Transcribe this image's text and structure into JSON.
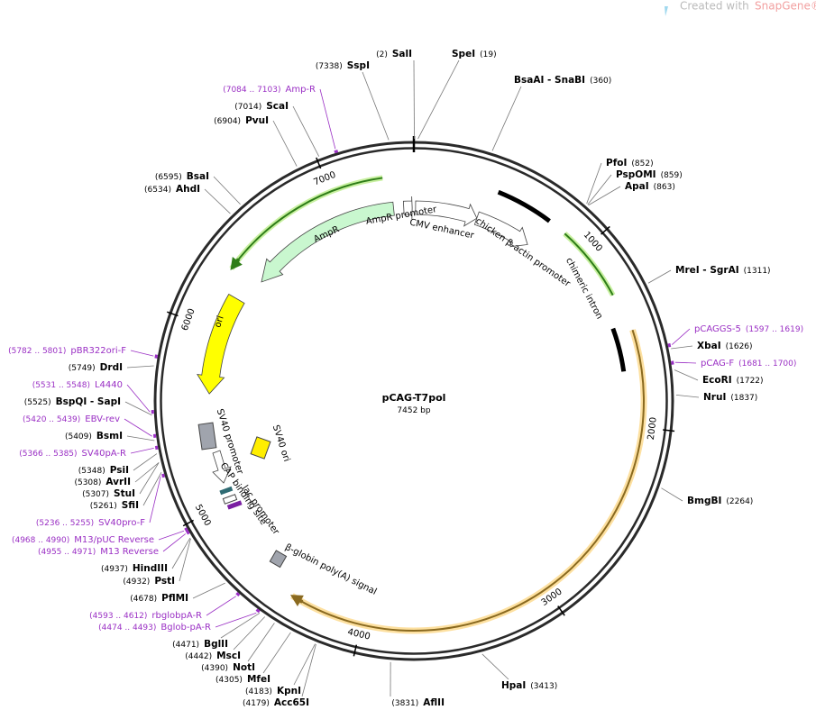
{
  "header": {
    "prefix": "Created with",
    "brand": "SnapGene®"
  },
  "map": {
    "name": "pCAG-T7pol",
    "length": 7452,
    "unit": "bp",
    "ticks": [
      1000,
      2000,
      3000,
      4000,
      5000,
      6000,
      7000
    ]
  },
  "sites": [
    {
      "name": "SalI",
      "position": "(2)"
    },
    {
      "name": "SspI",
      "position": "(7338)"
    },
    {
      "name": "SpeI",
      "position": "(19)"
    },
    {
      "name": "BsaAI - SnaBI",
      "position": "(360)"
    },
    {
      "name": "PfoI",
      "position": "(852)"
    },
    {
      "name": "PspOMI",
      "position": "(859)"
    },
    {
      "name": "ApaI",
      "position": "(863)"
    },
    {
      "name": "MreI - SgrAI",
      "position": "(1311)"
    },
    {
      "name": "XbaI",
      "position": "(1626)"
    },
    {
      "name": "EcoRI",
      "position": "(1722)"
    },
    {
      "name": "NruI",
      "position": "(1837)"
    },
    {
      "name": "BmgBI",
      "position": "(2264)"
    },
    {
      "name": "HpaI",
      "position": "(3413)"
    },
    {
      "name": "AflII",
      "position": "(3831)"
    },
    {
      "name": "ScaI",
      "position": "(7014)"
    },
    {
      "name": "PvuI",
      "position": "(6904)"
    },
    {
      "name": "BsaI",
      "position": "(6595)"
    },
    {
      "name": "AhdI",
      "position": "(6534)"
    },
    {
      "name": "DrdI",
      "position": "(5749)"
    },
    {
      "name": "BspQI - SapI",
      "position": "(5525)"
    },
    {
      "name": "BsmI",
      "position": "(5409)"
    },
    {
      "name": "PsiI",
      "position": "(5348)"
    },
    {
      "name": "AvrII",
      "position": "(5308)"
    },
    {
      "name": "StuI",
      "position": "(5307)"
    },
    {
      "name": "SfiI",
      "position": "(5261)"
    },
    {
      "name": "HindIII",
      "position": "(4937)"
    },
    {
      "name": "PstI",
      "position": "(4932)"
    },
    {
      "name": "PflMI",
      "position": "(4678)"
    },
    {
      "name": "BglII",
      "position": "(4471)"
    },
    {
      "name": "MscI",
      "position": "(4442)"
    },
    {
      "name": "NotI",
      "position": "(4390)"
    },
    {
      "name": "MfeI",
      "position": "(4305)"
    },
    {
      "name": "KpnI",
      "position": "(4183)"
    },
    {
      "name": "Acc65I",
      "position": "(4179)"
    }
  ],
  "primers": [
    {
      "name": "Amp-R",
      "range": "(7084 .. 7103)"
    },
    {
      "name": "pCAGGS-5",
      "range": "(1597 .. 1619)"
    },
    {
      "name": "pCAG-F",
      "range": "(1681 .. 1700)"
    },
    {
      "name": "pBR322ori-F",
      "range": "(5782 .. 5801)"
    },
    {
      "name": "L4440",
      "range": "(5531 .. 5548)"
    },
    {
      "name": "EBV-rev",
      "range": "(5420 .. 5439)"
    },
    {
      "name": "SV40pA-R",
      "range": "(5366 .. 5385)"
    },
    {
      "name": "SV40pro-F",
      "range": "(5236 .. 5255)"
    },
    {
      "name": "M13/pUC Reverse",
      "range": "(4968 .. 4990)"
    },
    {
      "name": "M13 Reverse",
      "range": "(4955 .. 4971)"
    },
    {
      "name": "rbglobpA-R",
      "range": "(4593 .. 4612)"
    },
    {
      "name": "Bglob-pA-R",
      "range": "(4474 .. 4493)"
    }
  ],
  "features": [
    "AmpR promoter",
    "AmpR",
    "ori",
    "CMV enhancer",
    "chicken β-actin promoter",
    "chimeric intron",
    "SV40 promoter",
    "SV40 ori",
    "CAP binding site",
    "lac promoter",
    "β-globin poly(A) signal"
  ]
}
